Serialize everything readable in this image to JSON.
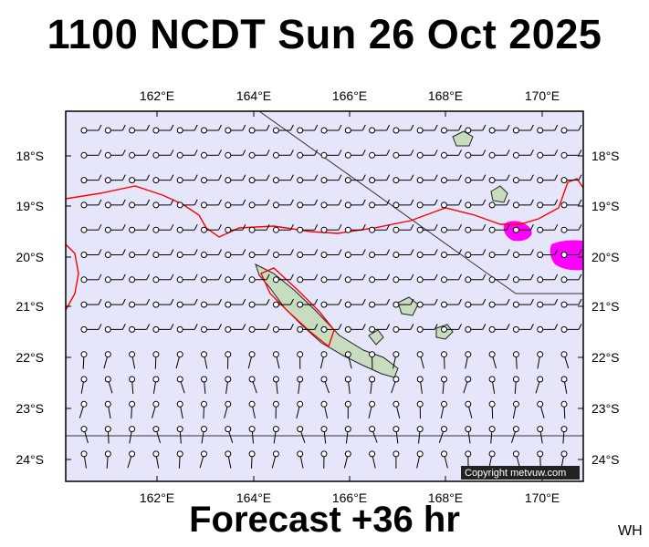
{
  "header": {
    "title": "1100 NCDT Sun 26 Oct 2025"
  },
  "footer": {
    "forecast": "Forecast +36 hr",
    "corner_tag": "WH"
  },
  "map": {
    "lon_range": [
      160.2,
      171.0
    ],
    "lat_range": [
      -24.4,
      -17.0
    ],
    "lon_ticks": [
      "162°E",
      "164°E",
      "166°E",
      "168°E",
      "170°E"
    ],
    "lat_ticks": [
      "18°S",
      "19°S",
      "20°S",
      "21°S",
      "22°S",
      "23°S",
      "24°S"
    ],
    "copyright": "Copyright metvuw.com",
    "colors": {
      "ocean": "#e6e6fa",
      "land": "#c8dcc0",
      "contour": "#ff0000",
      "high_wind": "#ff00ff",
      "barb": "#000000"
    }
  }
}
